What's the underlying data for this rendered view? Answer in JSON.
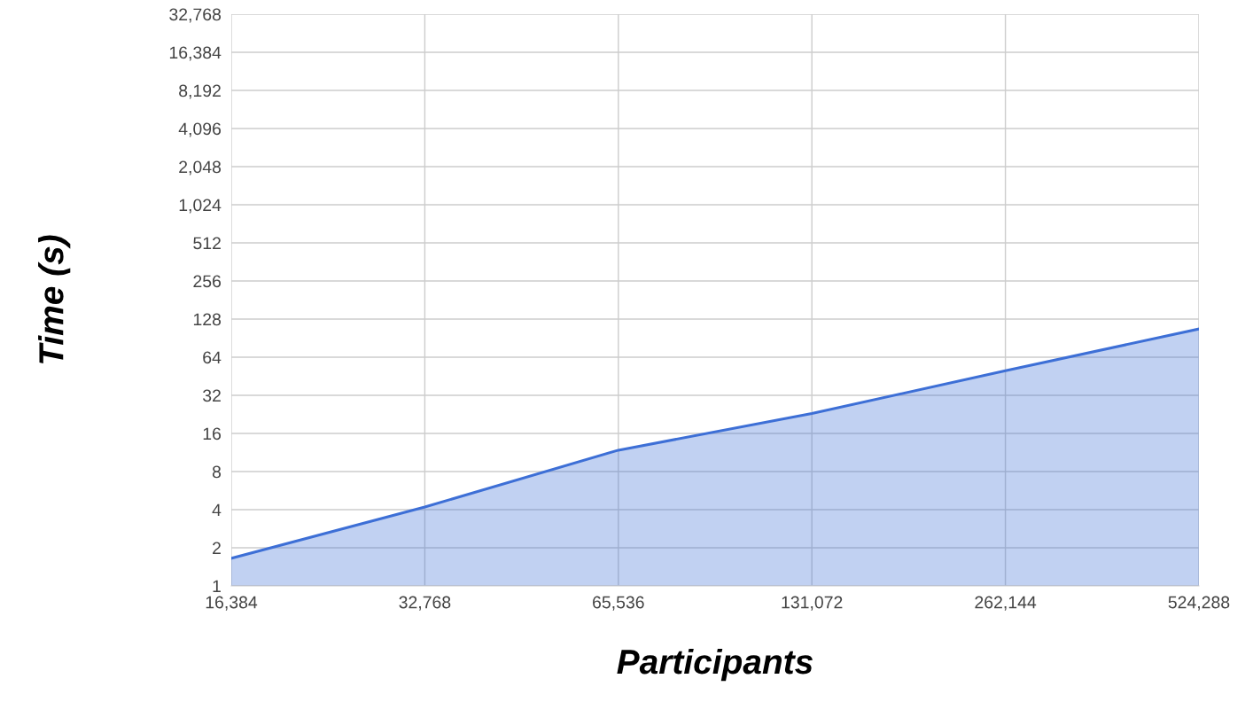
{
  "chart_data": {
    "type": "area",
    "xlabel": "Participants",
    "ylabel": "Time (s)",
    "log": "xy",
    "grid": true,
    "x": [
      16384,
      32768,
      65536,
      131072,
      262144,
      524288
    ],
    "series": [
      {
        "color": "#3d6fd6",
        "values": [
          1.65,
          4.2,
          11.8,
          23,
          50,
          107
        ]
      }
    ],
    "xlim": [
      16384,
      524288
    ],
    "xticks": [
      {
        "value": 16384,
        "label": "16,384"
      },
      {
        "value": 32768,
        "label": "32,768"
      },
      {
        "value": 65536,
        "label": "65,536"
      },
      {
        "value": 131072,
        "label": "131,072"
      },
      {
        "value": 262144,
        "label": "262,144"
      },
      {
        "value": 524288,
        "label": "524,288"
      }
    ],
    "ylim": [
      1,
      32768
    ],
    "yticks": [
      1,
      2,
      4,
      8,
      16,
      32,
      64,
      128,
      256,
      512,
      {
        "value": 1024,
        "label": "1,024"
      },
      {
        "value": 2048,
        "label": "2,048"
      },
      {
        "value": 4096,
        "label": "4,096"
      },
      {
        "value": 8192,
        "label": "8,192"
      },
      {
        "value": 16384,
        "label": "16,384"
      },
      {
        "value": 32768,
        "label": "32,768"
      }
    ]
  }
}
